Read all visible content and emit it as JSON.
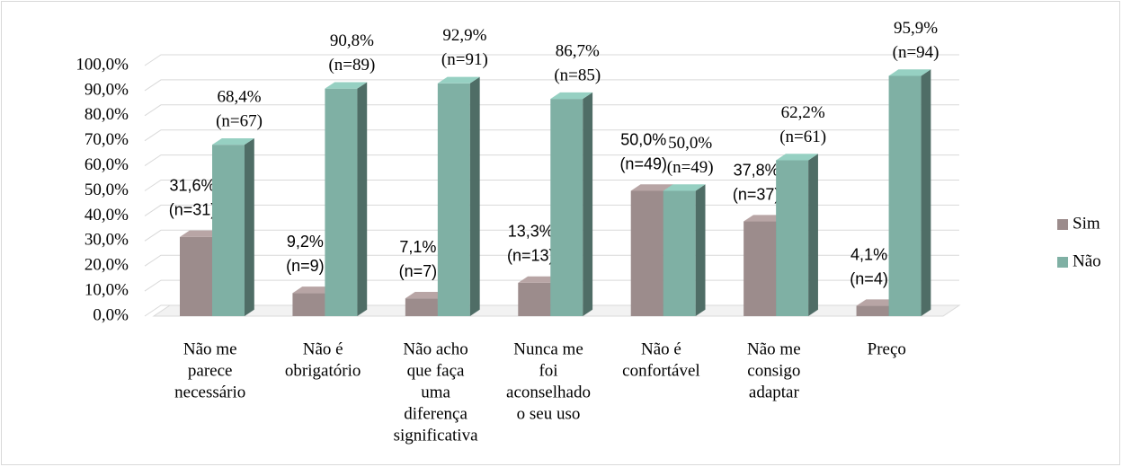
{
  "chart_data": {
    "type": "bar3d",
    "categories": [
      [
        "Não me",
        "parece",
        "necessário"
      ],
      [
        "Não é",
        "obrigatório"
      ],
      [
        "Não acho",
        "que faça",
        "uma",
        "diferença",
        "significativa"
      ],
      [
        "Nunca me",
        "foi",
        "aconselhado",
        "o seu uso"
      ],
      [
        "Não é",
        "confortável"
      ],
      [
        "Não me",
        "consigo",
        "adaptar"
      ],
      [
        "Preço"
      ]
    ],
    "series": [
      {
        "name": "Sim",
        "color": "#9c8c8c",
        "values": [
          31.6,
          9.2,
          7.1,
          13.3,
          50.0,
          37.8,
          4.1
        ],
        "value_labels": [
          [
            "31,6%",
            "(n=31)"
          ],
          [
            "9,2%",
            "(n=9)"
          ],
          [
            "7,1%",
            "(n=7)"
          ],
          [
            "13,3%",
            "(n=13)"
          ],
          [
            "50,0%",
            "(n=49)"
          ],
          [
            "37,8%",
            "(n=37)"
          ],
          [
            "4,1%",
            "(n=4)"
          ]
        ]
      },
      {
        "name": "Não",
        "color": "#7fb0a4",
        "values": [
          68.4,
          90.8,
          92.9,
          86.7,
          50.0,
          62.2,
          95.9
        ],
        "value_labels": [
          [
            "68,4%",
            "(n=67)"
          ],
          [
            "90,8%",
            "(n=89)"
          ],
          [
            "92,9%",
            "(n=91)"
          ],
          [
            "86,7%",
            "(n=85)"
          ],
          [
            "50,0%",
            "(n=49)"
          ],
          [
            "62,2%",
            "(n=61)"
          ],
          [
            "95,9%",
            "(n=94)"
          ]
        ]
      }
    ],
    "ylim": [
      0,
      100
    ],
    "yticks": [
      {
        "value": 0,
        "label": "0,0%"
      },
      {
        "value": 10,
        "label": "10,0%"
      },
      {
        "value": 20,
        "label": "20,0%"
      },
      {
        "value": 30,
        "label": "30,0%"
      },
      {
        "value": 40,
        "label": "40,0%"
      },
      {
        "value": 50,
        "label": "50,0%"
      },
      {
        "value": 60,
        "label": "60,0%"
      },
      {
        "value": 70,
        "label": "70,0%"
      },
      {
        "value": 80,
        "label": "80,0%"
      },
      {
        "value": 90,
        "label": "90,0%"
      },
      {
        "value": 100,
        "label": "100,0%"
      }
    ],
    "grid": true,
    "legend": "right"
  }
}
